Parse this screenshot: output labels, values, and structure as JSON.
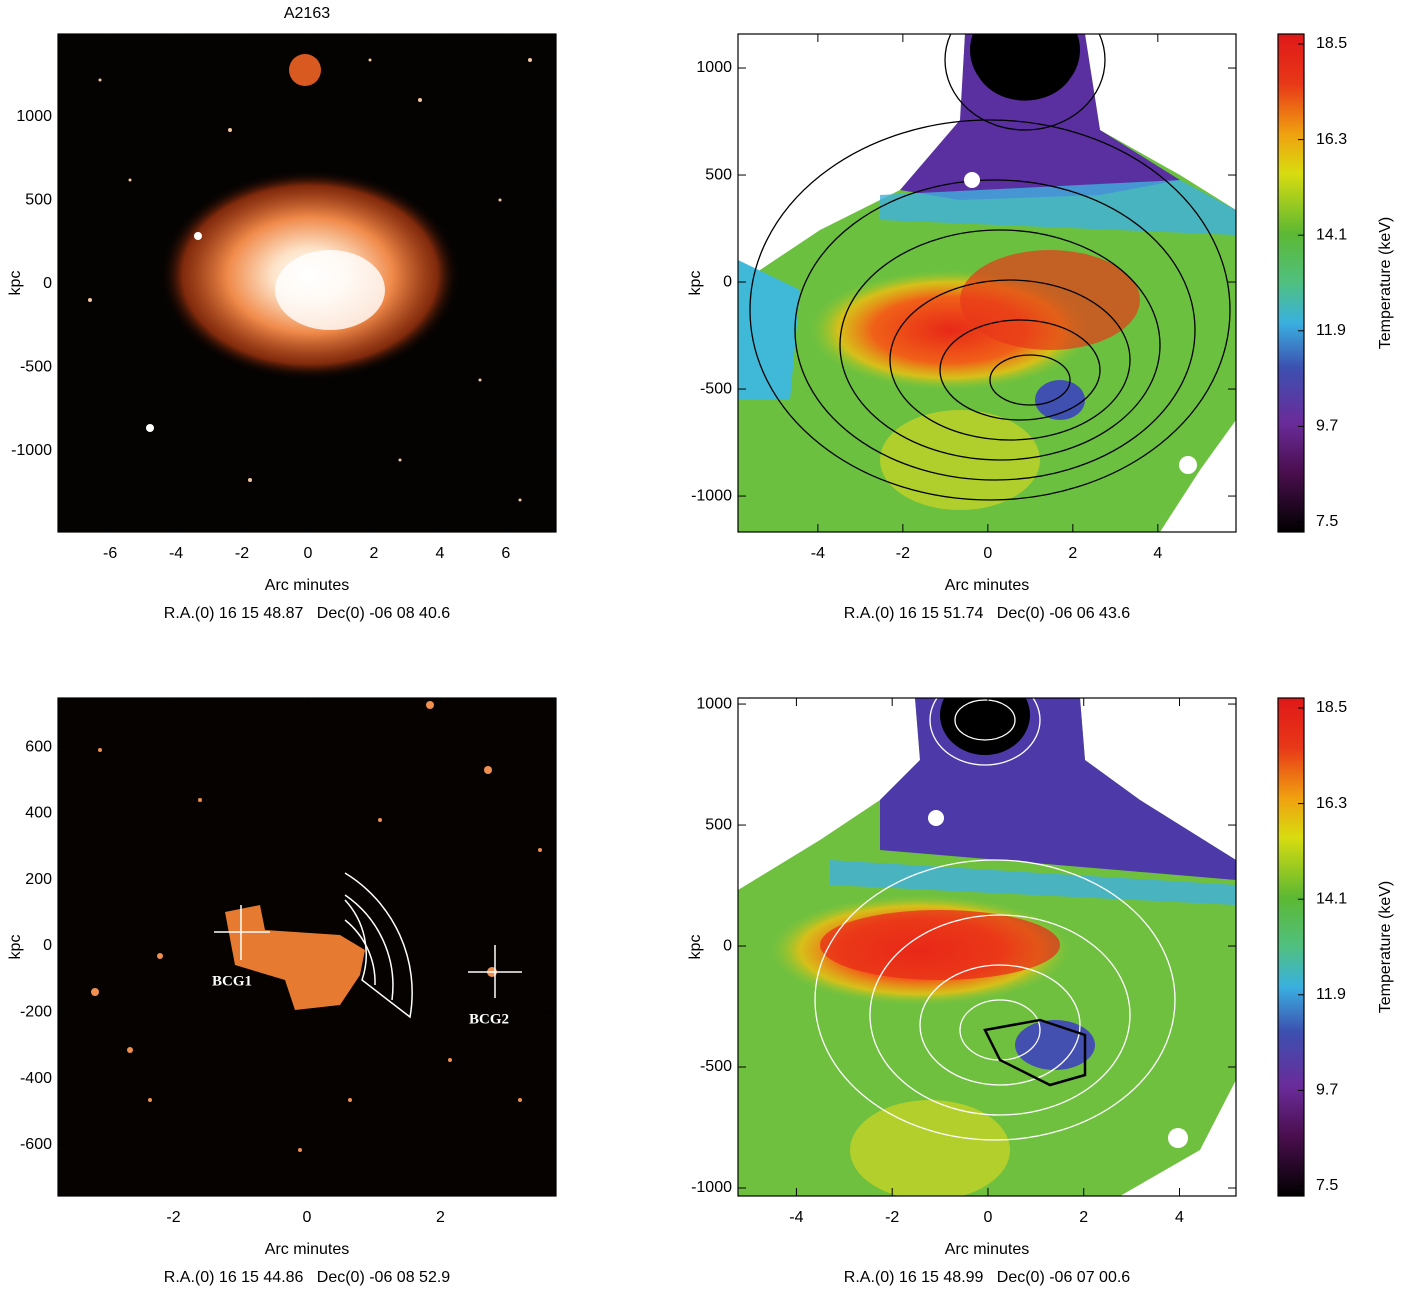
{
  "chart_data": [
    {
      "type": "image",
      "title": "A2163",
      "xlabel": "Arc minutes",
      "ylabel": "kpc",
      "coordinates": "R.A.(0) 16 15 48.87   Dec(0) -06 08 40.6",
      "xlim": [
        -7.58,
        7.52
      ],
      "ylim": [
        -1485,
        1497
      ],
      "xticks": [
        -6,
        -4,
        -2,
        0,
        2,
        4,
        6
      ],
      "yticks": [
        -1000,
        -500,
        0,
        500,
        1000
      ]
    },
    {
      "type": "image",
      "xlabel": "Arc minutes",
      "ylabel": "kpc",
      "coordinates": "R.A.(0) 16 15 51.74   Dec(0) -06 06 43.6",
      "xlim": [
        -5.88,
        5.84
      ],
      "ylim": [
        -1168,
        1159
      ],
      "xticks": [
        -4,
        -2,
        0,
        2,
        4
      ],
      "yticks": [
        -1000,
        -500,
        0,
        500,
        1000
      ],
      "colorbar": {
        "label": "Temperature (keV)",
        "lim": [
          7.27,
          18.73
        ],
        "ticks": [
          7.5,
          9.7,
          11.9,
          14.1,
          16.3,
          18.5
        ]
      }
    },
    {
      "type": "image",
      "xlabel": "Arc minutes",
      "ylabel": "kpc",
      "coordinates": "R.A.(0) 16 15 44.86   Dec(0) -06 08 52.9",
      "xlim": [
        -3.73,
        3.73
      ],
      "ylim": [
        -754,
        748
      ],
      "xticks": [
        -2,
        0,
        2
      ],
      "yticks": [
        -600,
        -400,
        -200,
        0,
        200,
        400,
        600
      ],
      "annotations": [
        "BCG1",
        "BCG2"
      ]
    },
    {
      "type": "image",
      "xlabel": "Arc minutes",
      "ylabel": "kpc",
      "coordinates": "R.A.(0) 16 15 48.99   Dec(0) -06 07 00.6",
      "xlim": [
        -5.22,
        5.18
      ],
      "ylim": [
        -1033,
        1025
      ],
      "xticks": [
        -4,
        -2,
        0,
        2,
        4
      ],
      "yticks": [
        -1000,
        -500,
        0,
        500,
        1000
      ],
      "colorbar": {
        "label": "Temperature (keV)",
        "lim": [
          7.27,
          18.73
        ],
        "ticks": [
          7.5,
          9.7,
          11.9,
          14.1,
          16.3,
          18.5
        ]
      }
    }
  ]
}
